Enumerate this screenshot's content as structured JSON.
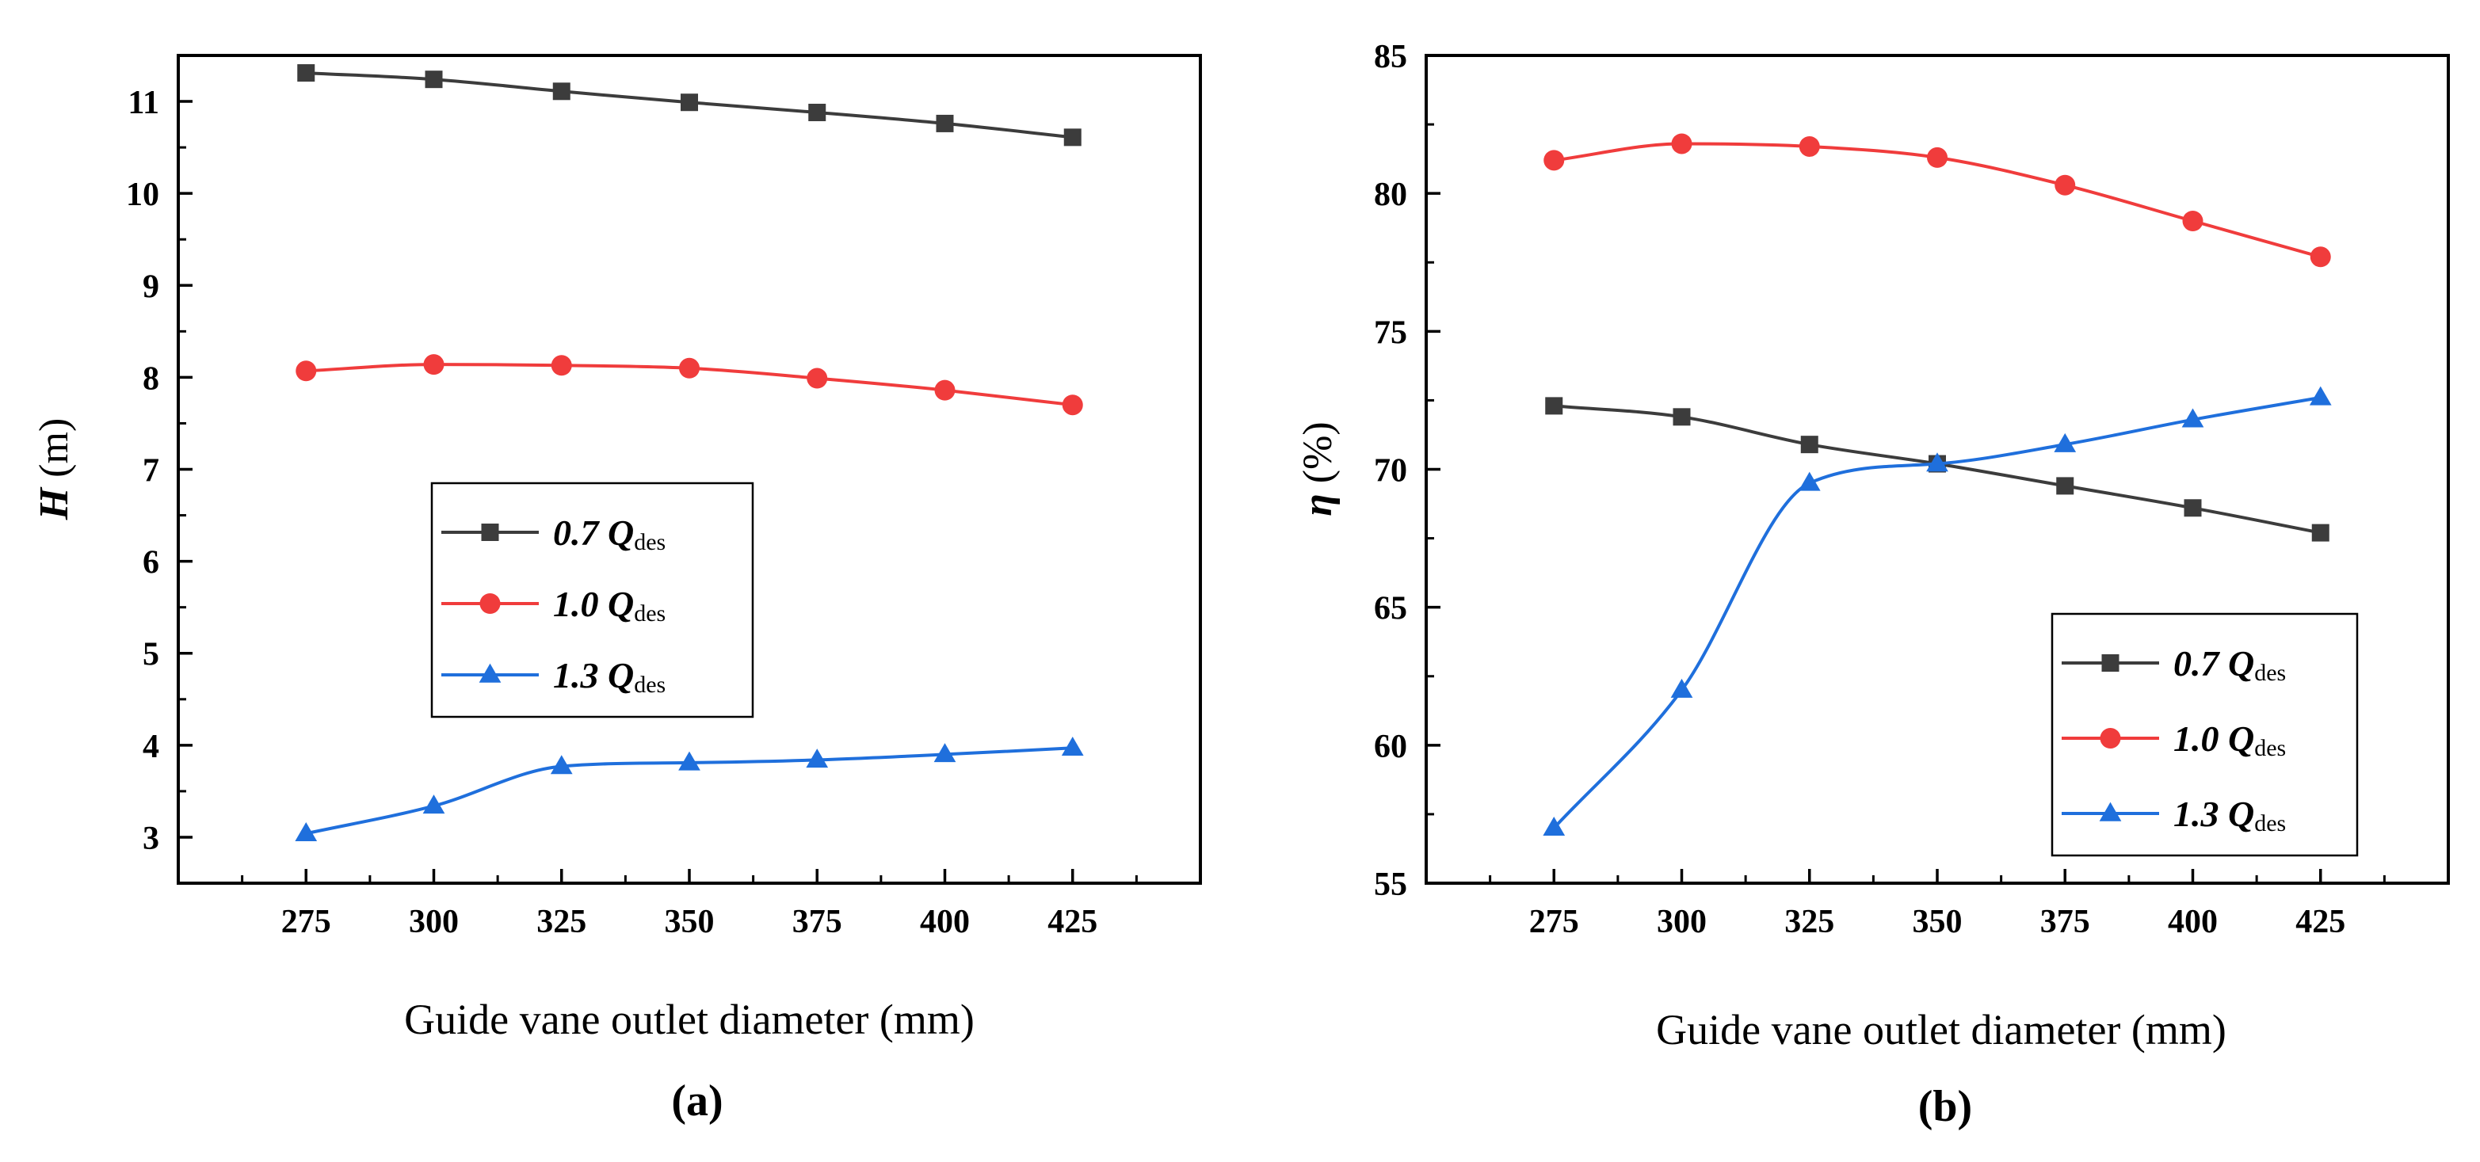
{
  "chart_data": [
    {
      "id": "a",
      "type": "line",
      "panel_label": "(a)",
      "xlabel": "Guide vane outlet diameter (mm)",
      "ylabel_symbol": "H",
      "ylabel_unit": " (m)",
      "x": [
        275,
        300,
        325,
        350,
        375,
        400,
        425
      ],
      "xlim": [
        250,
        450
      ],
      "xticks": [
        275,
        300,
        325,
        350,
        375,
        400,
        425
      ],
      "ylim": [
        2.5,
        11.5
      ],
      "yticks": [
        3,
        4,
        5,
        6,
        7,
        8,
        9,
        10,
        11
      ],
      "grid": false,
      "legend_position": "center-left",
      "series": [
        {
          "name": "0.7 Q",
          "name_main": "0.7 Q",
          "name_sub": "des",
          "color": "#3c3c3c",
          "marker": "square",
          "values": [
            11.31,
            11.24,
            11.11,
            10.99,
            10.88,
            10.76,
            10.61
          ]
        },
        {
          "name": "1.0 Q",
          "name_main": "1.0 Q",
          "name_sub": "des",
          "color": "#f03c3c",
          "marker": "circle",
          "values": [
            8.07,
            8.14,
            8.13,
            8.1,
            7.99,
            7.86,
            7.7
          ]
        },
        {
          "name": "1.3 Q",
          "name_main": "1.3 Q",
          "name_sub": "des",
          "color": "#1f6fdc",
          "marker": "triangle",
          "values": [
            3.04,
            3.34,
            3.77,
            3.81,
            3.84,
            3.9,
            3.97
          ]
        }
      ]
    },
    {
      "id": "b",
      "type": "line",
      "panel_label": "(b)",
      "xlabel": "Guide vane outlet diameter (mm)",
      "ylabel_symbol": "η",
      "ylabel_unit": " (%)",
      "x": [
        275,
        300,
        325,
        350,
        375,
        400,
        425
      ],
      "xlim": [
        250,
        450
      ],
      "xticks": [
        275,
        300,
        325,
        350,
        375,
        400,
        425
      ],
      "ylim": [
        55,
        85
      ],
      "yticks": [
        55,
        60,
        65,
        70,
        75,
        80,
        85
      ],
      "grid": false,
      "legend_position": "bottom-right",
      "series": [
        {
          "name": "0.7 Q",
          "name_main": "0.7 Q",
          "name_sub": "des",
          "color": "#3c3c3c",
          "marker": "square",
          "values": [
            72.3,
            71.9,
            70.9,
            70.2,
            69.4,
            68.6,
            67.7
          ]
        },
        {
          "name": "1.0 Q",
          "name_main": "1.0 Q",
          "name_sub": "des",
          "color": "#f03c3c",
          "marker": "circle",
          "values": [
            81.2,
            81.8,
            81.7,
            81.3,
            80.3,
            79.0,
            77.7
          ]
        },
        {
          "name": "1.3 Q",
          "name_main": "1.3 Q",
          "name_sub": "des",
          "color": "#1f6fdc",
          "marker": "triangle",
          "values": [
            57.0,
            62.0,
            69.5,
            70.2,
            70.9,
            71.8,
            72.6
          ]
        }
      ]
    }
  ]
}
